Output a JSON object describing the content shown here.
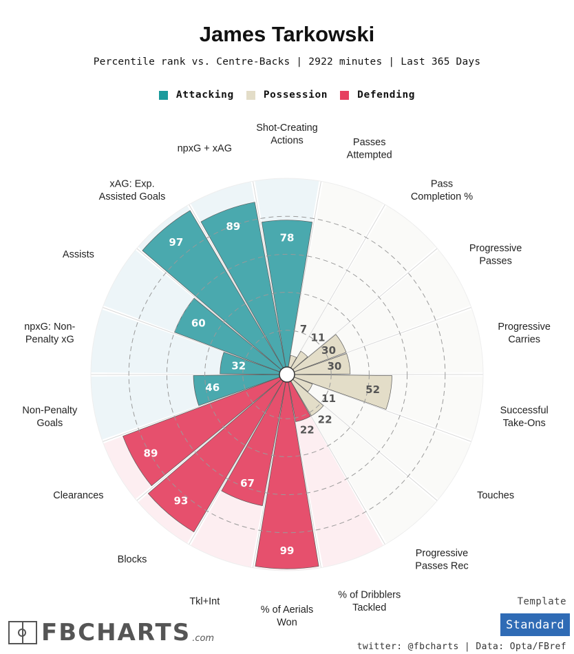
{
  "title": "James Tarkowski",
  "subtitle": "Percentile rank vs. Centre-Backs | 2922 minutes | Last 365 Days",
  "legend": [
    {
      "label": "Attacking",
      "color": "#1a9a9c"
    },
    {
      "label": "Possession",
      "color": "#e3ddc8"
    },
    {
      "label": "Defending",
      "color": "#e6405f"
    }
  ],
  "template": {
    "label": "Template",
    "value": "Standard"
  },
  "brand": {
    "name": "FBCHARTS",
    "tld": ".com"
  },
  "credit": "twitter: @fbcharts | Data: Opta/FBref",
  "chart_data": {
    "type": "polar-bar",
    "title": "James Tarkowski",
    "scale": [
      0,
      100
    ],
    "gridlines": [
      20,
      40,
      60,
      80
    ],
    "colors": {
      "Attacking": {
        "bar": "#4aa9ae",
        "background": "#edf5f8"
      },
      "Possession": {
        "bar": "#e3ddc8",
        "background": "#fafaf8"
      },
      "Defending": {
        "bar": "#e6506d",
        "background": "#fdeef1"
      }
    },
    "metrics": [
      {
        "label": "Shot-Creating\nActions",
        "value": 78,
        "group": "Attacking"
      },
      {
        "label": "Passes\nAttempted",
        "value": 7,
        "group": "Possession"
      },
      {
        "label": "Pass\nCompletion %",
        "value": 11,
        "group": "Possession"
      },
      {
        "label": "Progressive\nPasses",
        "value": 30,
        "group": "Possession"
      },
      {
        "label": "Progressive\nCarries",
        "value": 30,
        "group": "Possession"
      },
      {
        "label": "Successful\nTake-Ons",
        "value": 52,
        "group": "Possession"
      },
      {
        "label": "Touches",
        "value": 11,
        "group": "Possession"
      },
      {
        "label": "Progressive\nPasses Rec",
        "value": 22,
        "group": "Possession"
      },
      {
        "label": "% of Dribblers\nTackled",
        "value": 22,
        "group": "Defending"
      },
      {
        "label": "% of Aerials\nWon",
        "value": 99,
        "group": "Defending"
      },
      {
        "label": "Tkl+Int",
        "value": 67,
        "group": "Defending"
      },
      {
        "label": "Blocks",
        "value": 93,
        "group": "Defending"
      },
      {
        "label": "Clearances",
        "value": 89,
        "group": "Defending"
      },
      {
        "label": "Non-Penalty\nGoals",
        "value": 46,
        "group": "Attacking"
      },
      {
        "label": "npxG: Non-\nPenalty xG",
        "value": 32,
        "group": "Attacking"
      },
      {
        "label": "Assists",
        "value": 60,
        "group": "Attacking"
      },
      {
        "label": "xAG: Exp.\nAssisted Goals",
        "value": 97,
        "group": "Attacking"
      },
      {
        "label": "npxG + xAG",
        "value": 89,
        "group": "Attacking"
      }
    ]
  }
}
